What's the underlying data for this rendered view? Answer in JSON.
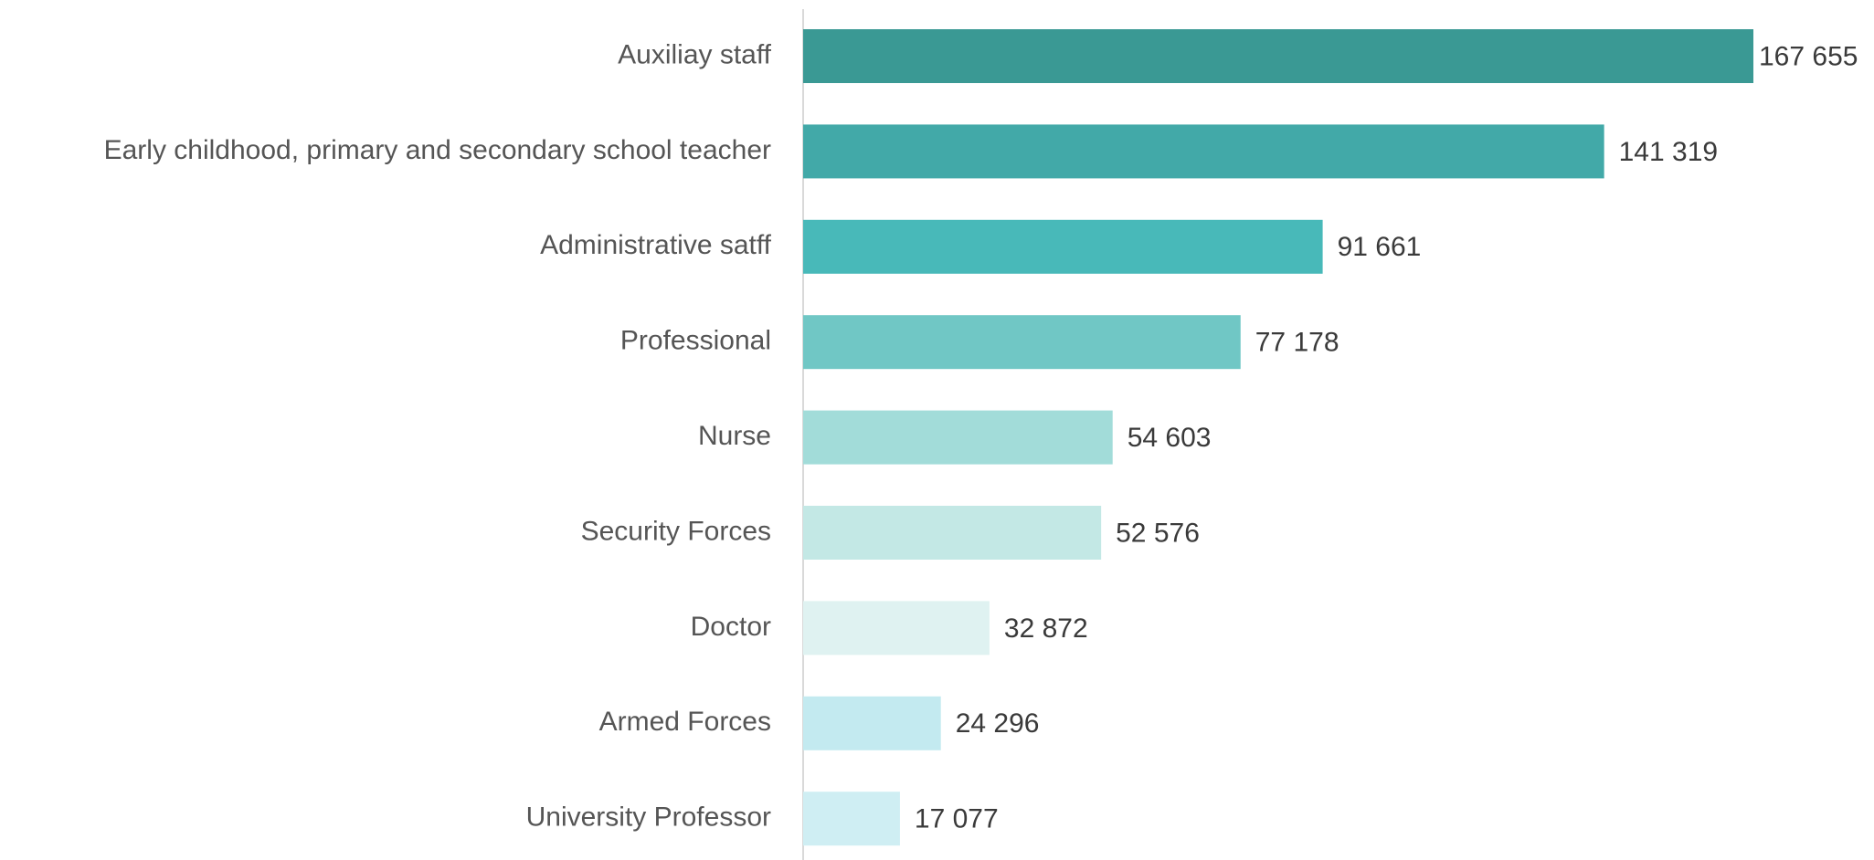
{
  "chart_data": {
    "type": "barh",
    "categories": [
      "Auxiliay staff",
      "Early childhood, primary and secondary school teacher",
      "Administrative satff",
      "Professional",
      "Nurse",
      "Security Forces",
      "Doctor",
      "Armed Forces",
      "University Professor"
    ],
    "values": [
      167655,
      141319,
      91661,
      77178,
      54603,
      52576,
      32872,
      24296,
      17077
    ],
    "value_labels": [
      "167 655",
      "141 319",
      "91 661",
      "77 178",
      "54 603",
      "52 576",
      "32 872",
      "24 296",
      "17 077"
    ],
    "colors": [
      "#3a9994",
      "#42a9a8",
      "#48b9b9",
      "#70c7c5",
      "#a2dcd9",
      "#c3e8e5",
      "#dff2f1",
      "#c3eaf0",
      "#cfeef3"
    ]
  }
}
